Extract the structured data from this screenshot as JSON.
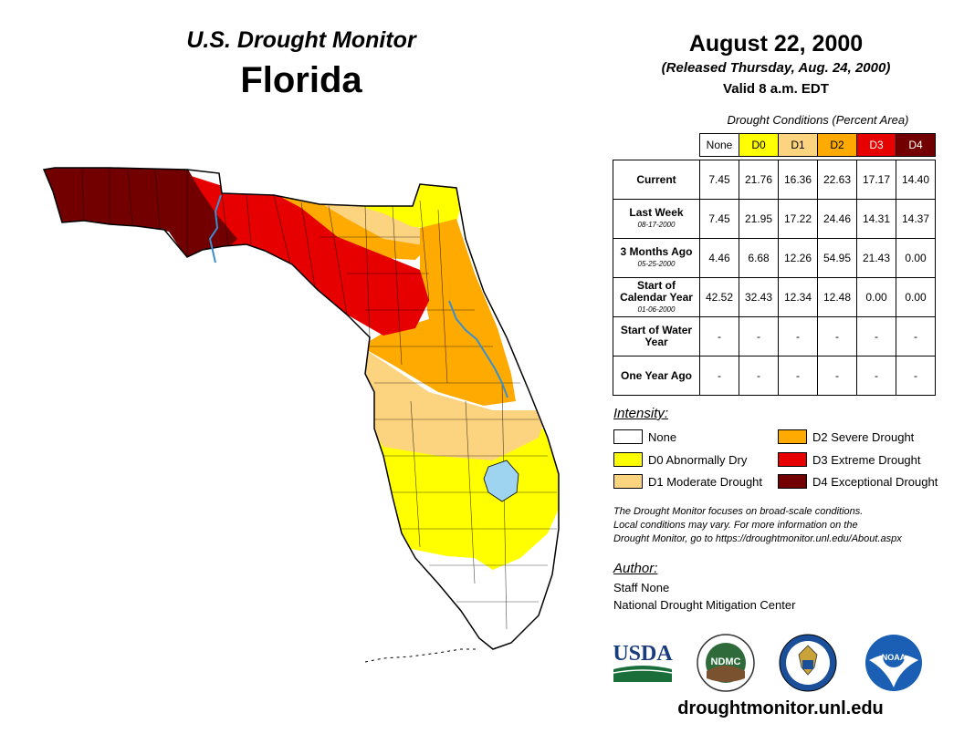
{
  "header": {
    "subtitle": "U.S. Drought Monitor",
    "state": "Florida",
    "date": "August 22, 2000",
    "released": "(Released Thursday, Aug. 24, 2000)",
    "valid": "Valid 8 a.m. EDT"
  },
  "table": {
    "caption": "Drought Conditions (Percent Area)",
    "columns": [
      "None",
      "D0",
      "D1",
      "D2",
      "D3",
      "D4"
    ],
    "rows": [
      {
        "label": "Current",
        "date": "",
        "values": [
          "7.45",
          "21.76",
          "16.36",
          "22.63",
          "17.17",
          "14.40"
        ]
      },
      {
        "label": "Last Week",
        "date": "08-17-2000",
        "values": [
          "7.45",
          "21.95",
          "17.22",
          "24.46",
          "14.31",
          "14.37"
        ]
      },
      {
        "label": "3 Months Ago",
        "date": "05-25-2000",
        "values": [
          "4.46",
          "6.68",
          "12.26",
          "54.95",
          "21.43",
          "0.00"
        ]
      },
      {
        "label": "Start of Calendar Year",
        "date": "01-06-2000",
        "values": [
          "42.52",
          "32.43",
          "12.34",
          "12.48",
          "0.00",
          "0.00"
        ]
      },
      {
        "label": "Start of Water Year",
        "date": "",
        "values": [
          "-",
          "-",
          "-",
          "-",
          "-",
          "-"
        ]
      },
      {
        "label": "One Year Ago",
        "date": "",
        "values": [
          "-",
          "-",
          "-",
          "-",
          "-",
          "-"
        ]
      }
    ]
  },
  "legend": {
    "title": "Intensity:",
    "items": [
      {
        "label": "None",
        "color": "#ffffff"
      },
      {
        "label": "D0 Abnormally Dry",
        "color": "#ffff00"
      },
      {
        "label": "D1 Moderate Drought",
        "color": "#fcd37f"
      },
      {
        "label": "D2 Severe Drought",
        "color": "#ffaa00"
      },
      {
        "label": "D3 Extreme Drought",
        "color": "#e60000"
      },
      {
        "label": "D4 Exceptional Drought",
        "color": "#730000"
      }
    ]
  },
  "colors": {
    "none": "#ffffff",
    "d0": "#ffff00",
    "d1": "#fcd37f",
    "d2": "#ffaa00",
    "d3": "#e60000",
    "d4": "#730000",
    "water": "#9fd4f0",
    "river": "#3a8fd0"
  },
  "note": {
    "line1": "The Drought Monitor focuses on broad-scale conditions.",
    "line2": "Local conditions may vary. For more information on the",
    "line3": "Drought Monitor, go to https://droughtmonitor.unl.edu/About.aspx"
  },
  "author": {
    "title": "Author:",
    "name": "Staff None",
    "org": "National Drought Mitigation Center"
  },
  "logos": {
    "usda": "USDA",
    "ndmc": "NDMC",
    "noaa": "NOAA"
  },
  "footer": {
    "site": "droughtmonitor.unl.edu"
  }
}
